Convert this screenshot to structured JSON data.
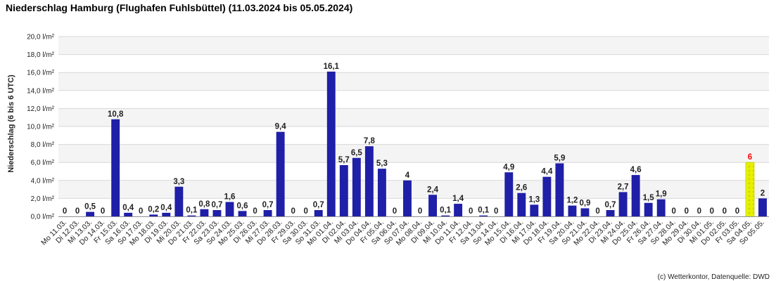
{
  "chart_data": {
    "type": "bar",
    "title": "Niederschlag Hamburg (Flughafen Fuhlsbüttel) (11.03.2024 bis 05.05.2024)",
    "ylabel": "Niederschlag (6 bis 6 UTC)",
    "xlabel": "",
    "ylim": [
      0,
      20
    ],
    "yticks": [
      "0,0 l/m²",
      "2,0 l/m²",
      "4,0 l/m²",
      "6,0 l/m²",
      "8,0 l/m²",
      "10,0 l/m²",
      "12,0 l/m²",
      "14,0 l/m²",
      "16,0 l/m²",
      "18,0 l/m²",
      "20,0 l/m²"
    ],
    "grid": true,
    "legend": "none",
    "colors": {
      "bar": "#1f1fa8",
      "highlight_fill": "#e8f000",
      "highlight_label": "#ff0000",
      "band": "#f4f4f4",
      "grid": "#d8d8d8"
    },
    "categories": [
      "Mo 11.03.",
      "Di 12.03.",
      "Mi 13.03.",
      "Do 14.03.",
      "Fr 15.03.",
      "Sa 16.03.",
      "So 17.03.",
      "Mo 18.03.",
      "Di 19.03.",
      "Mi 20.03.",
      "Do 21.03.",
      "Fr 22.03.",
      "Sa 23.03.",
      "So 24.03.",
      "Mo 25.03.",
      "Di 26.03.",
      "Mi 27.03.",
      "Do 28.03.",
      "Fr 29.03.",
      "Sa 30.03.",
      "So 31.03.",
      "Mo 01.04.",
      "Di 02.04.",
      "Mi 03.04.",
      "Do 04.04.",
      "Fr 05.04.",
      "Sa 06.04.",
      "So 07.04.",
      "Mo 08.04.",
      "Di 09.04.",
      "Mi 10.04.",
      "Do 11.04.",
      "Fr 12.04.",
      "Sa 13.04.",
      "So 14.04.",
      "Mo 15.04.",
      "Di 16.04.",
      "Mi 17.04.",
      "Do 18.04.",
      "Fr 19.04.",
      "Sa 20.04.",
      "So 21.04.",
      "Mo 22.04.",
      "Di 23.04.",
      "Mi 24.04.",
      "Do 25.04.",
      "Fr 26.04.",
      "Sa 27.04.",
      "So 28.04.",
      "Mo 29.04.",
      "Di 30.04.",
      "Mi 01.05.",
      "Do 02.05.",
      "Fr 03.05.",
      "Sa 04.05.",
      "So 05.05."
    ],
    "values": [
      0,
      0,
      0.5,
      0,
      10.8,
      0.4,
      0,
      0.2,
      0.4,
      3.3,
      0.1,
      0.8,
      0.7,
      1.6,
      0.6,
      0,
      0.7,
      9.4,
      0,
      0,
      0.7,
      16.1,
      5.7,
      6.5,
      7.8,
      5.3,
      0,
      4,
      0,
      2.4,
      0.1,
      1.4,
      0,
      0.1,
      0,
      4.9,
      2.6,
      1.3,
      4.4,
      5.9,
      1.2,
      0.9,
      0,
      0.7,
      2.7,
      4.6,
      1.5,
      1.9,
      0,
      0,
      0,
      0,
      0,
      0,
      6,
      2
    ],
    "value_labels": [
      "0",
      "0",
      "0,5",
      "0",
      "10,8",
      "0,4",
      "0",
      "0,2",
      "0,4",
      "3,3",
      "0,1",
      "0,8",
      "0,7",
      "1,6",
      "0,6",
      "0",
      "0,7",
      "9,4",
      "0",
      "0",
      "0,7",
      "16,1",
      "5,7",
      "6,5",
      "7,8",
      "5,3",
      "0",
      "4",
      "0",
      "2,4",
      "0,1",
      "1,4",
      "0",
      "0,1",
      "0",
      "4,9",
      "2,6",
      "1,3",
      "4,4",
      "5,9",
      "1,2",
      "0,9",
      "0",
      "0,7",
      "2,7",
      "4,6",
      "1,5",
      "1,9",
      "0",
      "0",
      "0",
      "0",
      "0",
      "0",
      "6",
      "2"
    ],
    "highlight_index": 54
  },
  "credit": "(c) Wetterkontor, Datenquelle: DWD"
}
